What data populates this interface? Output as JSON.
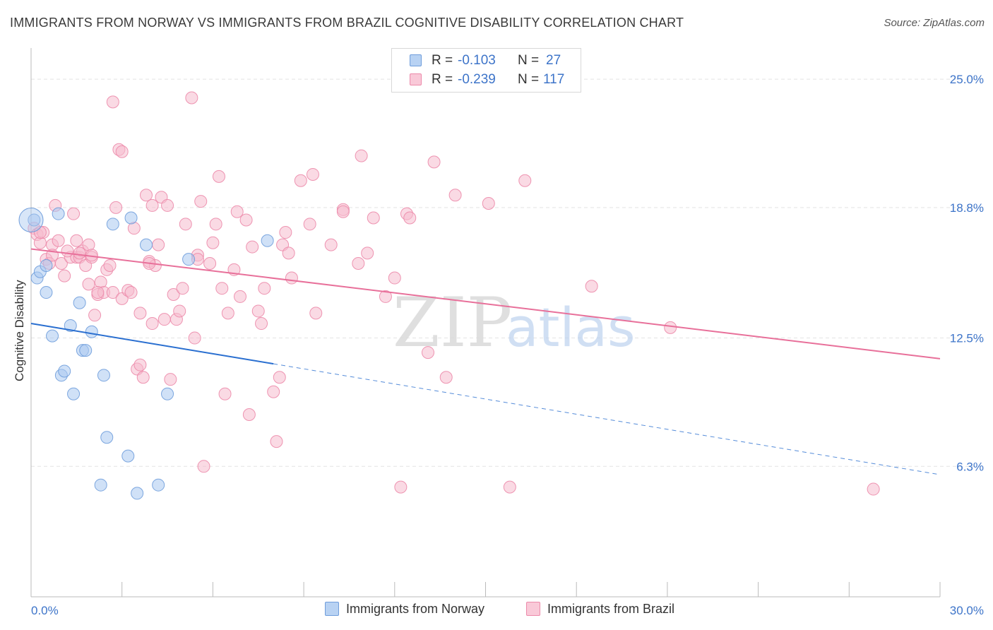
{
  "title": "IMMIGRANTS FROM NORWAY VS IMMIGRANTS FROM BRAZIL COGNITIVE DISABILITY CORRELATION CHART",
  "source": "Source: ZipAtlas.com",
  "watermark": {
    "zip": "ZIP",
    "atlas": "atlas"
  },
  "legend": {
    "rows": [
      {
        "r_label": "R =",
        "r_value": "-0.103",
        "n_label": "N =",
        "n_value": "27"
      },
      {
        "r_label": "R =",
        "r_value": "-0.239",
        "n_label": "N =",
        "n_value": "117"
      }
    ]
  },
  "bottom_legend": {
    "norway": "Immigrants from Norway",
    "brazil": "Immigrants from Brazil"
  },
  "colors": {
    "norway_fill": "#a9c8f0",
    "norway_stroke": "#6f9ddb",
    "norway_line": "#2a6fd0",
    "brazil_fill": "#f6bccd",
    "brazil_stroke": "#ec8aaa",
    "brazil_line": "#e8709a",
    "axis_label": "#3d74c9",
    "grid": "#e3e3e3"
  },
  "chart_data": {
    "type": "scatter",
    "title": "IMMIGRANTS FROM NORWAY VS IMMIGRANTS FROM BRAZIL COGNITIVE DISABILITY CORRELATION CHART",
    "xlabel": "",
    "ylabel": "Cognitive Disability",
    "xlim": [
      0,
      30
    ],
    "ylim": [
      0,
      26.3
    ],
    "x_tick_labels": [
      "0.0%",
      "30.0%"
    ],
    "y_ticks": [
      6.3,
      12.5,
      18.8,
      25.0
    ],
    "y_tick_labels": [
      "6.3%",
      "12.5%",
      "18.8%",
      "25.0%"
    ],
    "series": [
      {
        "name": "Immigrants from Norway",
        "r": -0.103,
        "n": 27,
        "trend": {
          "x0": 0,
          "y0": 13.2,
          "x_solid_end": 8.0,
          "x1": 30,
          "y1": 5.9
        },
        "points": [
          [
            0.1,
            18.2
          ],
          [
            0.2,
            15.4
          ],
          [
            0.3,
            15.7
          ],
          [
            0.5,
            16.0
          ],
          [
            0.5,
            14.7
          ],
          [
            0.7,
            12.6
          ],
          [
            0.9,
            18.5
          ],
          [
            1.0,
            10.7
          ],
          [
            1.1,
            10.9
          ],
          [
            1.3,
            13.1
          ],
          [
            1.4,
            9.8
          ],
          [
            1.6,
            14.2
          ],
          [
            1.7,
            11.9
          ],
          [
            1.8,
            11.9
          ],
          [
            2.0,
            12.8
          ],
          [
            2.3,
            5.4
          ],
          [
            2.4,
            10.7
          ],
          [
            2.5,
            7.7
          ],
          [
            2.7,
            18.0
          ],
          [
            3.2,
            6.8
          ],
          [
            3.3,
            18.3
          ],
          [
            3.5,
            5.0
          ],
          [
            3.8,
            17.0
          ],
          [
            4.2,
            5.4
          ],
          [
            4.5,
            9.8
          ],
          [
            5.2,
            16.3
          ],
          [
            7.8,
            17.2
          ]
        ]
      },
      {
        "name": "Immigrants from Brazil",
        "r": -0.239,
        "n": 117,
        "trend": {
          "x0": 0,
          "y0": 16.8,
          "x1": 30,
          "y1": 11.5
        },
        "points": [
          [
            0.1,
            17.8
          ],
          [
            0.2,
            17.5
          ],
          [
            0.3,
            17.1
          ],
          [
            0.4,
            17.6
          ],
          [
            0.5,
            16.3
          ],
          [
            0.6,
            16.1
          ],
          [
            0.7,
            17.0
          ],
          [
            0.7,
            16.5
          ],
          [
            0.8,
            18.9
          ],
          [
            0.9,
            17.2
          ],
          [
            1.0,
            16.1
          ],
          [
            1.1,
            15.5
          ],
          [
            1.3,
            16.4
          ],
          [
            1.4,
            18.5
          ],
          [
            1.5,
            17.2
          ],
          [
            1.5,
            16.4
          ],
          [
            1.6,
            16.4
          ],
          [
            1.7,
            16.7
          ],
          [
            1.8,
            16.0
          ],
          [
            1.9,
            17.0
          ],
          [
            1.9,
            15.1
          ],
          [
            2.0,
            16.4
          ],
          [
            2.1,
            13.6
          ],
          [
            2.2,
            14.6
          ],
          [
            2.3,
            15.2
          ],
          [
            2.4,
            14.7
          ],
          [
            2.5,
            15.8
          ],
          [
            2.6,
            16.0
          ],
          [
            2.7,
            14.7
          ],
          [
            2.8,
            18.8
          ],
          [
            2.7,
            23.9
          ],
          [
            2.9,
            21.6
          ],
          [
            3.0,
            21.5
          ],
          [
            3.0,
            14.4
          ],
          [
            3.2,
            14.8
          ],
          [
            3.3,
            14.7
          ],
          [
            3.4,
            17.8
          ],
          [
            3.5,
            11.0
          ],
          [
            3.6,
            11.2
          ],
          [
            3.6,
            13.7
          ],
          [
            3.7,
            10.6
          ],
          [
            3.8,
            19.4
          ],
          [
            3.9,
            16.2
          ],
          [
            4.0,
            13.2
          ],
          [
            4.0,
            18.9
          ],
          [
            4.1,
            16.0
          ],
          [
            4.2,
            17.0
          ],
          [
            4.3,
            19.3
          ],
          [
            4.4,
            13.4
          ],
          [
            4.5,
            18.9
          ],
          [
            4.6,
            10.5
          ],
          [
            4.7,
            14.6
          ],
          [
            4.8,
            13.4
          ],
          [
            4.9,
            13.8
          ],
          [
            5.0,
            14.9
          ],
          [
            5.1,
            18.0
          ],
          [
            5.3,
            24.1
          ],
          [
            5.4,
            12.5
          ],
          [
            5.5,
            16.5
          ],
          [
            5.6,
            19.1
          ],
          [
            5.7,
            6.3
          ],
          [
            5.9,
            16.1
          ],
          [
            6.0,
            17.1
          ],
          [
            6.1,
            18.0
          ],
          [
            6.2,
            20.3
          ],
          [
            6.3,
            14.9
          ],
          [
            6.4,
            9.8
          ],
          [
            6.5,
            13.7
          ],
          [
            6.7,
            15.8
          ],
          [
            6.8,
            18.6
          ],
          [
            6.9,
            14.5
          ],
          [
            7.1,
            18.2
          ],
          [
            7.2,
            8.8
          ],
          [
            7.3,
            16.9
          ],
          [
            7.5,
            13.8
          ],
          [
            7.6,
            13.2
          ],
          [
            7.7,
            14.9
          ],
          [
            8.0,
            9.9
          ],
          [
            8.1,
            7.5
          ],
          [
            8.2,
            10.6
          ],
          [
            8.3,
            17.0
          ],
          [
            8.4,
            17.6
          ],
          [
            8.5,
            16.6
          ],
          [
            8.6,
            15.4
          ],
          [
            8.9,
            20.1
          ],
          [
            9.2,
            18.0
          ],
          [
            9.3,
            20.4
          ],
          [
            9.4,
            13.7
          ],
          [
            9.9,
            17.0
          ],
          [
            10.3,
            18.7
          ],
          [
            10.3,
            18.6
          ],
          [
            10.8,
            16.1
          ],
          [
            10.9,
            21.3
          ],
          [
            11.1,
            16.6
          ],
          [
            11.3,
            18.3
          ],
          [
            11.7,
            14.5
          ],
          [
            12.0,
            15.4
          ],
          [
            12.2,
            5.3
          ],
          [
            12.4,
            18.5
          ],
          [
            12.5,
            18.3
          ],
          [
            13.1,
            11.8
          ],
          [
            13.3,
            21.0
          ],
          [
            13.7,
            10.6
          ],
          [
            14.0,
            19.4
          ],
          [
            15.1,
            19.0
          ],
          [
            15.8,
            5.3
          ],
          [
            16.3,
            20.1
          ],
          [
            18.5,
            15.0
          ],
          [
            21.1,
            13.0
          ],
          [
            27.8,
            5.2
          ],
          [
            1.2,
            16.7
          ],
          [
            2.0,
            16.5
          ],
          [
            3.9,
            16.1
          ],
          [
            5.5,
            16.3
          ],
          [
            0.3,
            17.6
          ],
          [
            1.6,
            16.6
          ],
          [
            2.2,
            14.7
          ]
        ]
      }
    ]
  }
}
